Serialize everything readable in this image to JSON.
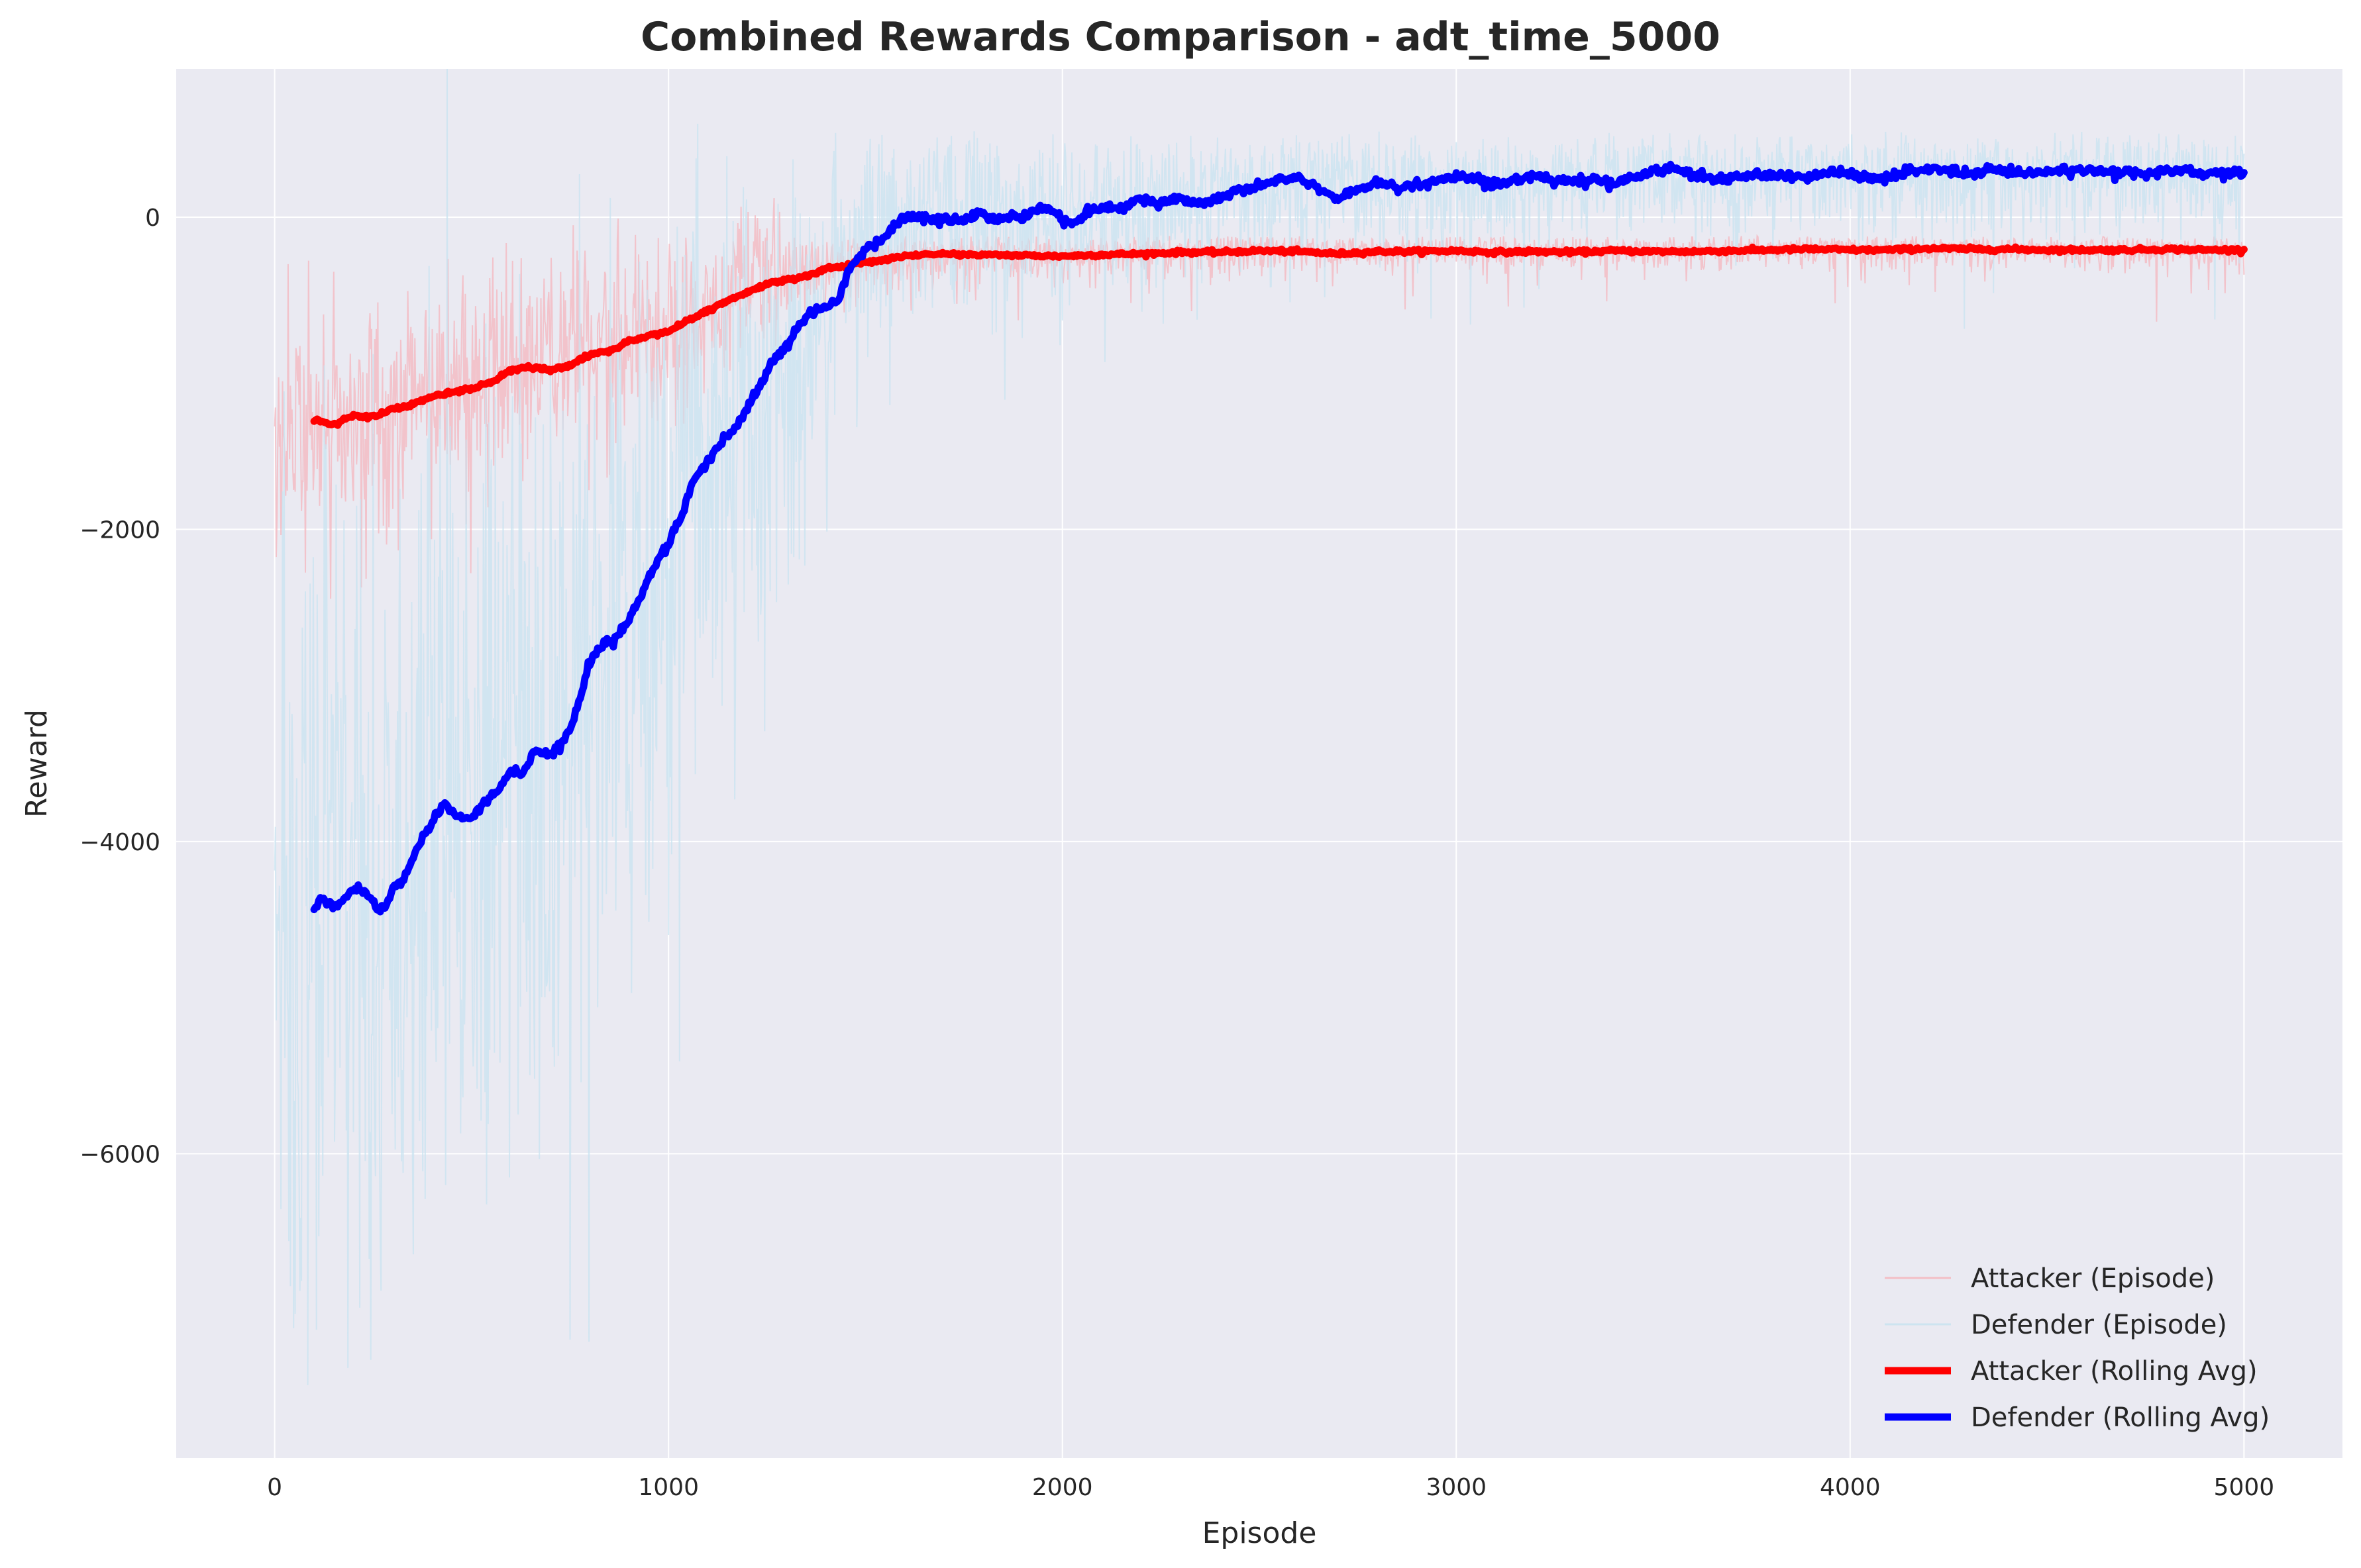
{
  "chart_data": {
    "type": "line",
    "title": "Combined Rewards Comparison - adt_time_5000",
    "xlabel": "Episode",
    "ylabel": "Reward",
    "xlim": [
      -250,
      5250
    ],
    "ylim": [
      -7950,
      950
    ],
    "xticks": [
      0,
      1000,
      2000,
      3000,
      4000,
      5000
    ],
    "xtick_labels": [
      "0",
      "1000",
      "2000",
      "3000",
      "4000",
      "5000"
    ],
    "yticks": [
      -6000,
      -4000,
      -2000,
      0
    ],
    "ytick_labels": [
      "−6000",
      "−4000",
      "−2000",
      "0"
    ],
    "grid": true,
    "legend_position": "lower-right",
    "background": "#eaeaf2",
    "series": [
      {
        "name": "Attacker (Episode)",
        "style": "thin",
        "color": "#f4b6bd",
        "rolling_reference": [
          [
            0,
            -1350
          ],
          [
            100,
            -1300
          ],
          [
            200,
            -1270
          ],
          [
            300,
            -1220
          ],
          [
            400,
            -1130
          ],
          [
            500,
            -1080
          ],
          [
            600,
            -970
          ],
          [
            700,
            -960
          ],
          [
            800,
            -860
          ],
          [
            900,
            -780
          ],
          [
            1000,
            -690
          ],
          [
            1100,
            -560
          ],
          [
            1200,
            -440
          ],
          [
            1300,
            -370
          ],
          [
            1400,
            -310
          ],
          [
            1500,
            -260
          ],
          [
            1700,
            -250
          ],
          [
            2000,
            -240
          ],
          [
            2500,
            -220
          ],
          [
            3000,
            -210
          ],
          [
            3500,
            -210
          ],
          [
            4000,
            -210
          ],
          [
            4500,
            -205
          ],
          [
            5000,
            -205
          ]
        ],
        "noise_reference": [
          [
            0,
            350
          ],
          [
            500,
            380
          ],
          [
            1000,
            300
          ],
          [
            1500,
            120
          ],
          [
            2000,
            80
          ],
          [
            3000,
            60
          ],
          [
            5000,
            60
          ]
        ],
        "spike_reference": [
          [
            0,
            600
          ],
          [
            1000,
            400
          ],
          [
            1500,
            350
          ],
          [
            5000,
            300
          ]
        ]
      },
      {
        "name": "Defender (Episode)",
        "style": "thin",
        "color": "#c8e3f0",
        "rolling_reference": [
          [
            0,
            -4600
          ],
          [
            100,
            -4400
          ],
          [
            200,
            -4350
          ],
          [
            300,
            -4300
          ],
          [
            400,
            -3850
          ],
          [
            500,
            -3800
          ],
          [
            600,
            -3560
          ],
          [
            700,
            -3450
          ],
          [
            800,
            -2780
          ],
          [
            900,
            -2500
          ],
          [
            1000,
            -1950
          ],
          [
            1100,
            -1500
          ],
          [
            1200,
            -1100
          ],
          [
            1300,
            -760
          ],
          [
            1400,
            -550
          ],
          [
            1500,
            -150
          ],
          [
            1600,
            20
          ],
          [
            1700,
            0
          ],
          [
            1800,
            20
          ],
          [
            2000,
            0
          ],
          [
            2500,
            200
          ],
          [
            3000,
            230
          ],
          [
            3500,
            280
          ],
          [
            4000,
            280
          ],
          [
            4500,
            300
          ],
          [
            5000,
            280
          ]
        ],
        "noise_reference": [
          [
            0,
            1500
          ],
          [
            500,
            1400
          ],
          [
            1000,
            1100
          ],
          [
            1300,
            700
          ],
          [
            1500,
            400
          ],
          [
            2000,
            250
          ],
          [
            3000,
            200
          ],
          [
            5000,
            200
          ]
        ],
        "spike_reference": [
          [
            0,
            2600
          ],
          [
            700,
            2400
          ],
          [
            1000,
            1600
          ],
          [
            1500,
            1200
          ],
          [
            2000,
            900
          ],
          [
            3000,
            800
          ],
          [
            5000,
            700
          ]
        ]
      },
      {
        "name": "Attacker (Rolling Avg)",
        "style": "thick",
        "color": "#ff0000",
        "x_start": 100,
        "values": [
          [
            100,
            -1300
          ],
          [
            150,
            -1330
          ],
          [
            200,
            -1270
          ],
          [
            250,
            -1280
          ],
          [
            300,
            -1230
          ],
          [
            350,
            -1200
          ],
          [
            400,
            -1150
          ],
          [
            450,
            -1120
          ],
          [
            500,
            -1100
          ],
          [
            550,
            -1060
          ],
          [
            600,
            -980
          ],
          [
            650,
            -960
          ],
          [
            700,
            -980
          ],
          [
            750,
            -950
          ],
          [
            800,
            -880
          ],
          [
            850,
            -860
          ],
          [
            900,
            -790
          ],
          [
            950,
            -760
          ],
          [
            1000,
            -730
          ],
          [
            1050,
            -660
          ],
          [
            1100,
            -600
          ],
          [
            1150,
            -540
          ],
          [
            1200,
            -480
          ],
          [
            1250,
            -430
          ],
          [
            1300,
            -400
          ],
          [
            1350,
            -380
          ],
          [
            1400,
            -330
          ],
          [
            1450,
            -310
          ],
          [
            1500,
            -290
          ],
          [
            1550,
            -270
          ],
          [
            1600,
            -250
          ],
          [
            1650,
            -240
          ],
          [
            1700,
            -235
          ],
          [
            1750,
            -240
          ],
          [
            1800,
            -240
          ],
          [
            1900,
            -245
          ],
          [
            2000,
            -250
          ],
          [
            2100,
            -240
          ],
          [
            2200,
            -235
          ],
          [
            2300,
            -225
          ],
          [
            2400,
            -225
          ],
          [
            2500,
            -215
          ],
          [
            2600,
            -220
          ],
          [
            2700,
            -235
          ],
          [
            2800,
            -220
          ],
          [
            2900,
            -220
          ],
          [
            3000,
            -215
          ],
          [
            3100,
            -225
          ],
          [
            3200,
            -220
          ],
          [
            3300,
            -225
          ],
          [
            3400,
            -215
          ],
          [
            3500,
            -220
          ],
          [
            3600,
            -220
          ],
          [
            3700,
            -215
          ],
          [
            3800,
            -210
          ],
          [
            3900,
            -205
          ],
          [
            4000,
            -210
          ],
          [
            4100,
            -210
          ],
          [
            4200,
            -200
          ],
          [
            4300,
            -205
          ],
          [
            4400,
            -205
          ],
          [
            4500,
            -210
          ],
          [
            4600,
            -210
          ],
          [
            4700,
            -210
          ],
          [
            4800,
            -205
          ],
          [
            4900,
            -210
          ],
          [
            5000,
            -210
          ]
        ]
      },
      {
        "name": "Defender (Rolling Avg)",
        "style": "thick",
        "color": "#0000ff",
        "x_start": 100,
        "values": [
          [
            100,
            -4440
          ],
          [
            120,
            -4350
          ],
          [
            150,
            -4420
          ],
          [
            180,
            -4360
          ],
          [
            200,
            -4300
          ],
          [
            230,
            -4320
          ],
          [
            260,
            -4440
          ],
          [
            280,
            -4420
          ],
          [
            300,
            -4300
          ],
          [
            330,
            -4230
          ],
          [
            360,
            -4050
          ],
          [
            400,
            -3880
          ],
          [
            430,
            -3760
          ],
          [
            460,
            -3830
          ],
          [
            500,
            -3860
          ],
          [
            530,
            -3760
          ],
          [
            560,
            -3700
          ],
          [
            600,
            -3550
          ],
          [
            630,
            -3560
          ],
          [
            660,
            -3420
          ],
          [
            700,
            -3440
          ],
          [
            730,
            -3380
          ],
          [
            760,
            -3220
          ],
          [
            800,
            -2850
          ],
          [
            830,
            -2740
          ],
          [
            860,
            -2720
          ],
          [
            900,
            -2580
          ],
          [
            930,
            -2430
          ],
          [
            960,
            -2250
          ],
          [
            1000,
            -2080
          ],
          [
            1030,
            -1930
          ],
          [
            1060,
            -1700
          ],
          [
            1100,
            -1560
          ],
          [
            1130,
            -1470
          ],
          [
            1160,
            -1380
          ],
          [
            1200,
            -1220
          ],
          [
            1230,
            -1080
          ],
          [
            1260,
            -940
          ],
          [
            1300,
            -820
          ],
          [
            1330,
            -700
          ],
          [
            1360,
            -610
          ],
          [
            1400,
            -570
          ],
          [
            1430,
            -540
          ],
          [
            1460,
            -320
          ],
          [
            1500,
            -200
          ],
          [
            1530,
            -170
          ],
          [
            1560,
            -100
          ],
          [
            1600,
            10
          ],
          [
            1630,
            0
          ],
          [
            1660,
            -20
          ],
          [
            1700,
            -10
          ],
          [
            1730,
            -30
          ],
          [
            1760,
            -10
          ],
          [
            1800,
            30
          ],
          [
            1830,
            -20
          ],
          [
            1860,
            10
          ],
          [
            1900,
            -10
          ],
          [
            1930,
            50
          ],
          [
            1960,
            60
          ],
          [
            2000,
            -10
          ],
          [
            2030,
            -40
          ],
          [
            2060,
            30
          ],
          [
            2100,
            60
          ],
          [
            2150,
            50
          ],
          [
            2200,
            120
          ],
          [
            2250,
            80
          ],
          [
            2300,
            120
          ],
          [
            2350,
            80
          ],
          [
            2400,
            120
          ],
          [
            2450,
            180
          ],
          [
            2500,
            200
          ],
          [
            2550,
            240
          ],
          [
            2600,
            250
          ],
          [
            2650,
            180
          ],
          [
            2700,
            130
          ],
          [
            2750,
            180
          ],
          [
            2800,
            220
          ],
          [
            2850,
            190
          ],
          [
            2900,
            200
          ],
          [
            2950,
            240
          ],
          [
            3000,
            260
          ],
          [
            3050,
            250
          ],
          [
            3100,
            200
          ],
          [
            3150,
            240
          ],
          [
            3200,
            260
          ],
          [
            3250,
            240
          ],
          [
            3300,
            230
          ],
          [
            3350,
            250
          ],
          [
            3400,
            210
          ],
          [
            3450,
            250
          ],
          [
            3500,
            300
          ],
          [
            3550,
            310
          ],
          [
            3600,
            280
          ],
          [
            3650,
            240
          ],
          [
            3700,
            250
          ],
          [
            3750,
            270
          ],
          [
            3800,
            260
          ],
          [
            3850,
            270
          ],
          [
            3900,
            260
          ],
          [
            3950,
            290
          ],
          [
            4000,
            280
          ],
          [
            4050,
            250
          ],
          [
            4100,
            250
          ],
          [
            4150,
            300
          ],
          [
            4200,
            310
          ],
          [
            4250,
            300
          ],
          [
            4300,
            270
          ],
          [
            4350,
            300
          ],
          [
            4400,
            290
          ],
          [
            4450,
            280
          ],
          [
            4500,
            290
          ],
          [
            4550,
            300
          ],
          [
            4600,
            310
          ],
          [
            4650,
            280
          ],
          [
            4700,
            290
          ],
          [
            4750,
            270
          ],
          [
            4800,
            300
          ],
          [
            4850,
            300
          ],
          [
            4900,
            280
          ],
          [
            4950,
            280
          ],
          [
            5000,
            280
          ]
        ]
      }
    ]
  }
}
